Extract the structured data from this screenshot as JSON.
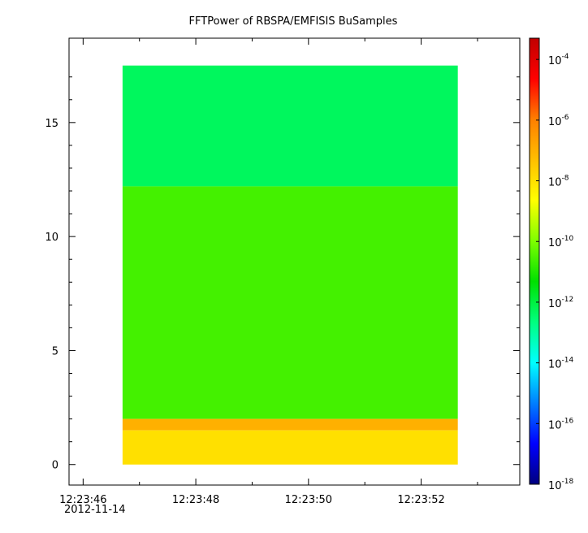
{
  "chart_data": {
    "type": "heatmap",
    "title": "FFTPower of RBSPA/EMFISIS  BuSamples",
    "xlabel": "",
    "ylabel": "",
    "x_tick_labels": [
      "12:23:46",
      "12:23:48",
      "12:23:50",
      "12:23:52"
    ],
    "x_tick_sublabel": "2012-11-14",
    "y_tick_labels": [
      "0",
      "5",
      "10",
      "15"
    ],
    "ylim": [
      -0.9,
      18.7
    ],
    "x_range_seconds": [
      45.75,
      53.75
    ],
    "data_time_range_seconds": [
      46.7,
      52.65
    ],
    "data_freq_range": [
      0,
      17.5
    ],
    "colorbar": {
      "scale": "log",
      "range": [
        -18,
        -3.3
      ],
      "tick_labels": [
        {
          "base": "10",
          "exp": "-4",
          "value": -4
        },
        {
          "base": "10",
          "exp": "-6",
          "value": -6
        },
        {
          "base": "10",
          "exp": "-8",
          "value": -8
        },
        {
          "base": "10",
          "exp": "-10",
          "value": -10
        },
        {
          "base": "10",
          "exp": "-12",
          "value": -12
        },
        {
          "base": "10",
          "exp": "-14",
          "value": -14
        },
        {
          "base": "10",
          "exp": "-16",
          "value": -16
        },
        {
          "base": "10",
          "exp": "-18",
          "value": -18
        }
      ],
      "colors": [
        "#00007f",
        "#0000ff",
        "#007fff",
        "#00ffff",
        "#00ff7f",
        "#00e000",
        "#7fff00",
        "#ffff00",
        "#ffbf00",
        "#ff7f00",
        "#ff0000",
        "#c00000"
      ]
    },
    "regions": [
      {
        "freq_range": [
          12.2,
          17.5
        ],
        "log_power": -12.3
      },
      {
        "freq_range": [
          2.0,
          12.2
        ],
        "log_power": -10.6
      },
      {
        "freq_range": [
          1.5,
          2.0
        ],
        "log_power": -7.0
      },
      {
        "freq_range": [
          0.0,
          1.5
        ],
        "log_power": -8.0
      }
    ]
  }
}
